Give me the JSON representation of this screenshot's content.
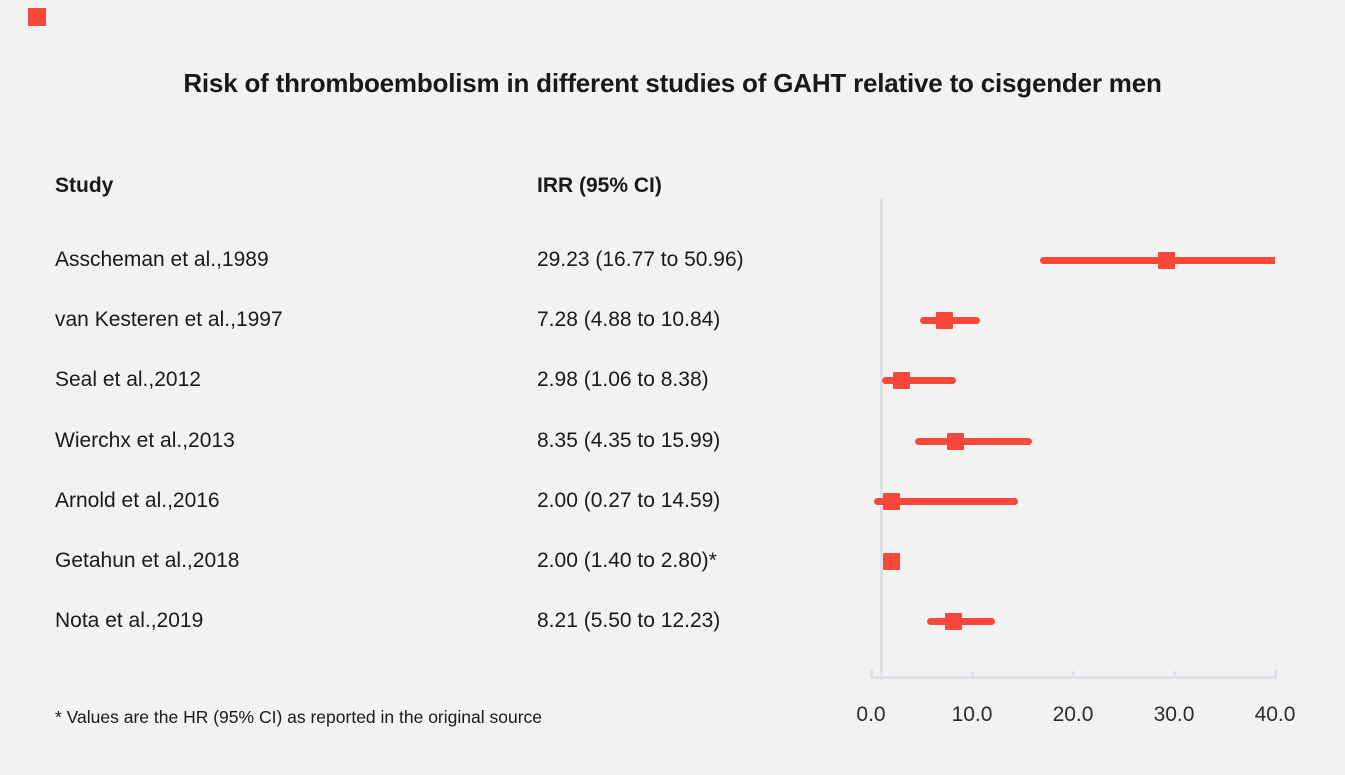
{
  "title": "Risk of thromboembolism in different studies of GAHT relative to cisgender men",
  "columns": {
    "study": "Study",
    "irr": "IRR (95% CI)"
  },
  "footnote": "* Values are the HR (95% CI) as reported in the original source",
  "colors": {
    "accent": "#f8483b",
    "axis": "#dde1e6",
    "background": "#f2f2f2",
    "text": "#1a1a1a"
  },
  "chart_data": {
    "type": "forest",
    "title": "Risk of thromboembolism in different studies of GAHT relative to cisgender men",
    "xlabel": "",
    "xlim": [
      0.0,
      40.0
    ],
    "x_ticks": [
      0.0,
      10.0,
      20.0,
      30.0,
      40.0
    ],
    "x_tick_labels": [
      "0.0",
      "10.0",
      "20.0",
      "30.0",
      "40.0"
    ],
    "reference_line_x": 1.0,
    "legend": "none",
    "grid": "off",
    "studies": [
      {
        "label": "Asscheman et al.,1989",
        "display": "29.23 (16.77 to 50.96)",
        "estimate": 29.23,
        "ci_low": 16.77,
        "ci_high": 50.96
      },
      {
        "label": "van Kesteren et al.,1997",
        "display": "7.28 (4.88 to 10.84)",
        "estimate": 7.28,
        "ci_low": 4.88,
        "ci_high": 10.84
      },
      {
        "label": "Seal et al.,2012",
        "display": "2.98 (1.06 to 8.38)",
        "estimate": 2.98,
        "ci_low": 1.06,
        "ci_high": 8.38
      },
      {
        "label": "Wierchx et al.,2013",
        "display": "8.35 (4.35 to 15.99)",
        "estimate": 8.35,
        "ci_low": 4.35,
        "ci_high": 15.99
      },
      {
        "label": "Arnold et al.,2016",
        "display": "2.00 (0.27 to 14.59)",
        "estimate": 2.0,
        "ci_low": 0.27,
        "ci_high": 14.59
      },
      {
        "label": "Getahun et al.,2018",
        "display": "2.00 (1.40 to 2.80)*",
        "estimate": 2.0,
        "ci_low": 1.4,
        "ci_high": 2.8
      },
      {
        "label": "Nota et al.,2019",
        "display": "8.21 (5.50 to 12.23)",
        "estimate": 8.21,
        "ci_low": 5.5,
        "ci_high": 12.23
      }
    ]
  }
}
